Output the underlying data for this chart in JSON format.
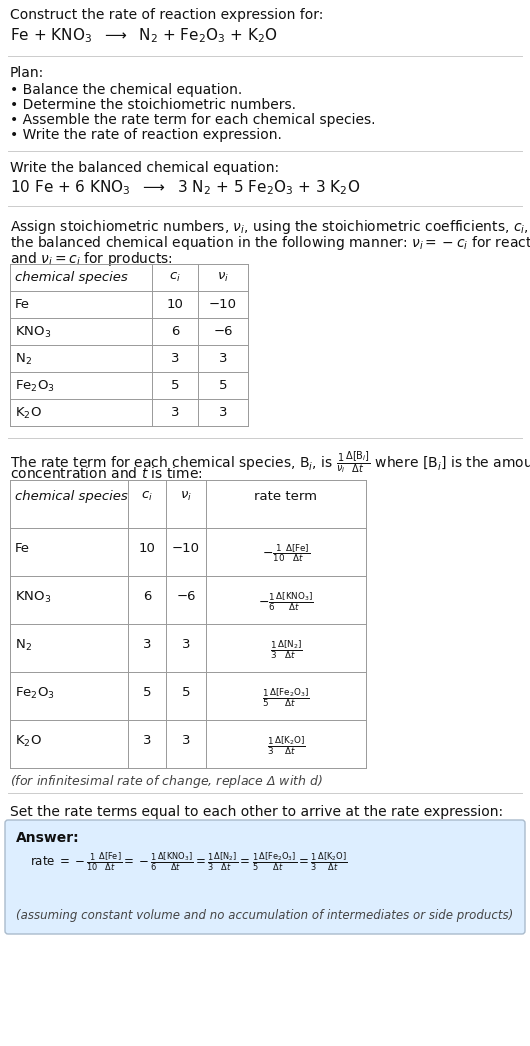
{
  "title_line1": "Construct the rate of reaction expression for:",
  "title_line2": "Fe + KNO$_3$  $\\longrightarrow$  N$_2$ + Fe$_2$O$_3$ + K$_2$O",
  "plan_header": "Plan:",
  "plan_items": [
    "• Balance the chemical equation.",
    "• Determine the stoichiometric numbers.",
    "• Assemble the rate term for each chemical species.",
    "• Write the rate of reaction expression."
  ],
  "balanced_header": "Write the balanced chemical equation:",
  "balanced_eq": "10 Fe + 6 KNO$_3$  $\\longrightarrow$  3 N$_2$ + 5 Fe$_2$O$_3$ + 3 K$_2$O",
  "stoich_intro1": "Assign stoichiometric numbers, $\\nu_i$, using the stoichiometric coefficients, $c_i$, from",
  "stoich_intro2": "the balanced chemical equation in the following manner: $\\nu_i = -c_i$ for reactants",
  "stoich_intro3": "and $\\nu_i = c_i$ for products:",
  "table1_headers": [
    "chemical species",
    "$c_i$",
    "$\\nu_i$"
  ],
  "table1_rows": [
    [
      "Fe",
      "10",
      "−10"
    ],
    [
      "KNO$_3$",
      "6",
      "−6"
    ],
    [
      "N$_2$",
      "3",
      "3"
    ],
    [
      "Fe$_2$O$_3$",
      "5",
      "5"
    ],
    [
      "K$_2$O",
      "3",
      "3"
    ]
  ],
  "rate_intro1": "The rate term for each chemical species, B$_i$, is $\\frac{1}{\\nu_i}\\frac{\\Delta[\\mathrm{B}_i]}{\\Delta t}$ where [B$_i$] is the amount",
  "rate_intro2": "concentration and $t$ is time:",
  "table2_headers": [
    "chemical species",
    "$c_i$",
    "$\\nu_i$",
    "rate term"
  ],
  "table2_rows": [
    [
      "Fe",
      "10",
      "−10",
      "$-\\frac{1}{10}\\frac{\\Delta[\\mathrm{Fe}]}{\\Delta t}$"
    ],
    [
      "KNO$_3$",
      "6",
      "−6",
      "$-\\frac{1}{6}\\frac{\\Delta[\\mathrm{KNO_3}]}{\\Delta t}$"
    ],
    [
      "N$_2$",
      "3",
      "3",
      "$\\frac{1}{3}\\frac{\\Delta[\\mathrm{N_2}]}{\\Delta t}$"
    ],
    [
      "Fe$_2$O$_3$",
      "5",
      "5",
      "$\\frac{1}{5}\\frac{\\Delta[\\mathrm{Fe_2O_3}]}{\\Delta t}$"
    ],
    [
      "K$_2$O",
      "3",
      "3",
      "$\\frac{1}{3}\\frac{\\Delta[\\mathrm{K_2O}]}{\\Delta t}$"
    ]
  ],
  "infinitesimal_note": "(for infinitesimal rate of change, replace Δ with $d$)",
  "set_equal_text": "Set the rate terms equal to each other to arrive at the rate expression:",
  "answer_label": "Answer:",
  "answer_eq": "rate $= -\\frac{1}{10}\\frac{\\Delta[\\mathrm{Fe}]}{\\Delta t} = -\\frac{1}{6}\\frac{\\Delta[\\mathrm{KNO_3}]}{\\Delta t} = \\frac{1}{3}\\frac{\\Delta[\\mathrm{N_2}]}{\\Delta t} = \\frac{1}{5}\\frac{\\Delta[\\mathrm{Fe_2O_3}]}{\\Delta t} = \\frac{1}{3}\\frac{\\Delta[\\mathrm{K_2O}]}{\\Delta t}$",
  "answer_note": "(assuming constant volume and no accumulation of intermediates or side products)",
  "bg_color": "#ffffff",
  "table_border_color": "#999999",
  "answer_box_color": "#ddeeff",
  "text_color": "#111111",
  "sep_color": "#cccccc"
}
